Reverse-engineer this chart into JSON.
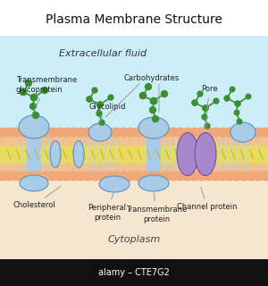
{
  "title": "Plasma Membrane Structure",
  "bg_color": "#ffffff",
  "extracellular_bg": "#cceef8",
  "cytoplasm_bg": "#f5e6d0",
  "extracellular_label": "Extracellular fluid",
  "cytoplasm_label": "Cytoplasm",
  "alamy_label": "alamy – CTE7G2",
  "head_color": "#f0a878",
  "tail_color": "#f5ddb0",
  "inner_color": "#ede878",
  "protein_blue": "#a8cce8",
  "protein_blue_edge": "#6090b8",
  "protein_purple": "#a888cc",
  "protein_purple_edge": "#7050a0",
  "carb_color": "#3a9030",
  "label_color": "#222222",
  "line_color": "#999999"
}
